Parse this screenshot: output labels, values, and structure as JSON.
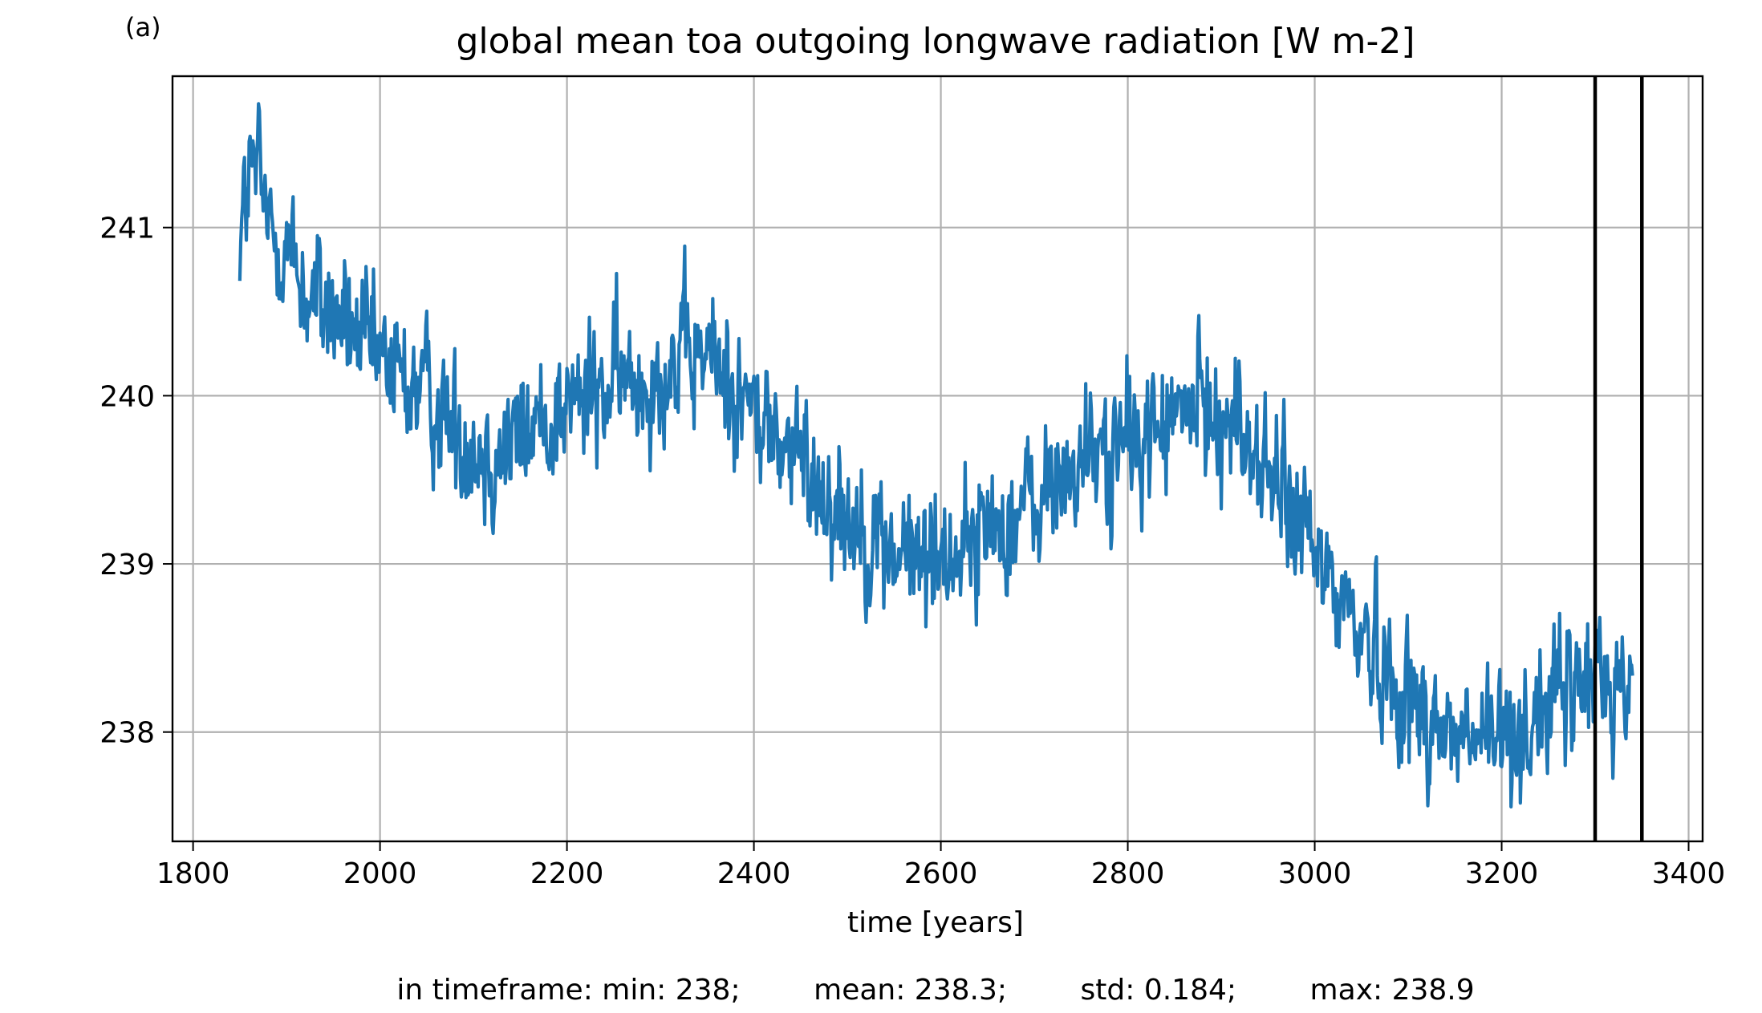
{
  "panel_label": "(a)",
  "stats_line": "in timeframe: min: 238;        mean: 238.3;        std: 0.184;        max: 238.9",
  "colors": {
    "series": "#1f77b4",
    "grid": "#b0b0b0",
    "markers": "#000000"
  },
  "chart_data": {
    "type": "line",
    "title": "global mean toa outgoing longwave radiation [W m-2]",
    "xlabel": "time [years]",
    "ylabel": "",
    "xlim": [
      1778,
      3415
    ],
    "ylim": [
      237.35,
      241.9
    ],
    "xticks": [
      1800,
      2000,
      2200,
      2400,
      2600,
      2800,
      3000,
      3200,
      3400
    ],
    "yticks": [
      238,
      239,
      240,
      241
    ],
    "grid": true,
    "vertical_lines": [
      3300,
      3350
    ],
    "series": [
      {
        "x_start": 1850,
        "x_end": 3340,
        "trend_points": [
          [
            1850,
            240.95
          ],
          [
            1860,
            241.3
          ],
          [
            1870,
            241.35
          ],
          [
            1880,
            241.0
          ],
          [
            1900,
            240.9
          ],
          [
            1920,
            240.6
          ],
          [
            1950,
            240.5
          ],
          [
            1980,
            240.3
          ],
          [
            2000,
            240.2
          ],
          [
            2050,
            240.0
          ],
          [
            2080,
            239.8
          ],
          [
            2120,
            239.65
          ],
          [
            2150,
            239.75
          ],
          [
            2200,
            239.95
          ],
          [
            2250,
            240.05
          ],
          [
            2300,
            240.15
          ],
          [
            2350,
            240.25
          ],
          [
            2400,
            239.9
          ],
          [
            2450,
            239.6
          ],
          [
            2500,
            239.3
          ],
          [
            2550,
            239.05
          ],
          [
            2600,
            239.05
          ],
          [
            2650,
            239.2
          ],
          [
            2700,
            239.35
          ],
          [
            2750,
            239.6
          ],
          [
            2800,
            239.7
          ],
          [
            2850,
            239.85
          ],
          [
            2880,
            239.95
          ],
          [
            2920,
            239.8
          ],
          [
            2960,
            239.45
          ],
          [
            3000,
            239.05
          ],
          [
            3050,
            238.6
          ],
          [
            3100,
            238.2
          ],
          [
            3150,
            237.95
          ],
          [
            3200,
            237.95
          ],
          [
            3250,
            238.15
          ],
          [
            3300,
            238.35
          ],
          [
            3340,
            238.25
          ]
        ],
        "noise_std": 0.2
      }
    ]
  }
}
